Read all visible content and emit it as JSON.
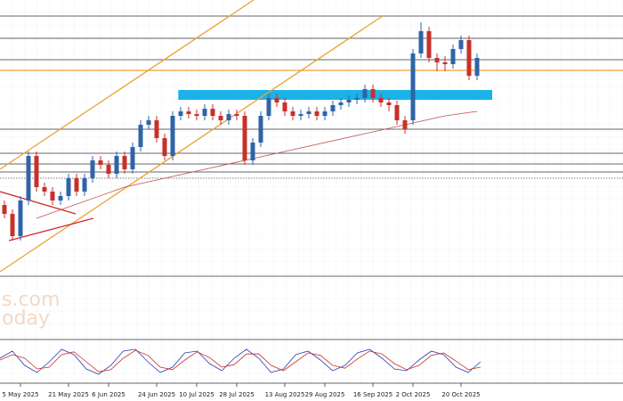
{
  "chart_data": {
    "type": "candlestick",
    "watermark": [
      "s.com",
      "oday"
    ],
    "open": [
      145,
      135,
      110,
      150,
      200,
      165,
      160,
      150,
      155,
      175,
      160,
      175,
      195,
      190,
      180,
      200,
      185,
      210,
      235,
      240,
      220,
      200,
      245,
      250,
      247,
      245,
      253,
      245,
      240,
      247,
      245,
      195,
      215,
      245,
      265,
      260,
      250,
      245,
      247,
      250,
      245,
      250,
      257,
      260,
      263,
      265,
      275,
      265,
      260,
      257,
      240,
      240,
      315,
      340,
      310,
      305,
      303,
      320,
      330,
      290
    ],
    "high": [
      150,
      140,
      155,
      205,
      205,
      170,
      165,
      160,
      180,
      180,
      180,
      200,
      200,
      195,
      205,
      205,
      215,
      240,
      245,
      245,
      225,
      250,
      255,
      255,
      252,
      258,
      258,
      250,
      252,
      252,
      250,
      220,
      250,
      270,
      270,
      265,
      255,
      252,
      255,
      255,
      255,
      262,
      265,
      268,
      270,
      280,
      280,
      270,
      265,
      262,
      245,
      320,
      350,
      345,
      315,
      312,
      325,
      335,
      335,
      315
    ],
    "low": [
      130,
      105,
      105,
      145,
      160,
      155,
      145,
      145,
      150,
      155,
      155,
      170,
      185,
      175,
      175,
      180,
      180,
      205,
      230,
      215,
      195,
      195,
      240,
      242,
      240,
      240,
      240,
      235,
      235,
      240,
      190,
      190,
      210,
      240,
      255,
      245,
      240,
      240,
      242,
      240,
      240,
      245,
      252,
      255,
      258,
      260,
      260,
      255,
      250,
      235,
      225,
      235,
      310,
      305,
      295,
      295,
      298,
      315,
      285,
      285
    ],
    "close": [
      135,
      110,
      150,
      200,
      165,
      160,
      150,
      155,
      175,
      160,
      175,
      195,
      190,
      180,
      200,
      185,
      210,
      235,
      240,
      220,
      200,
      245,
      250,
      247,
      245,
      253,
      245,
      240,
      247,
      245,
      195,
      215,
      245,
      265,
      260,
      250,
      245,
      247,
      250,
      245,
      250,
      257,
      260,
      263,
      265,
      275,
      265,
      260,
      257,
      240,
      230,
      315,
      340,
      310,
      305,
      303,
      320,
      330,
      290,
      310
    ],
    "up_color": "#2f64a8",
    "down_color": "#c8302a",
    "ylim": [
      0,
      375
    ],
    "xticks": [
      {
        "value": 2,
        "label": "5 May 2025"
      },
      {
        "value": 8,
        "label": "21 May 2025"
      },
      {
        "value": 13,
        "label": "6 Jun 2025"
      },
      {
        "value": 19,
        "label": "24 Jun 2025"
      },
      {
        "value": 24,
        "label": "10 Jul 2025"
      },
      {
        "value": 29,
        "label": "28 Jul 2025"
      },
      {
        "value": 35,
        "label": "13 Aug 2025"
      },
      {
        "value": 40,
        "label": "29 Aug 2025"
      },
      {
        "value": 46,
        "label": "16 Sep 2025"
      },
      {
        "value": 51,
        "label": "2 Oct 2025"
      },
      {
        "value": 57,
        "label": "20 Oct 2025"
      }
    ],
    "levels": [
      {
        "value": 357,
        "color": "#333333"
      },
      {
        "value": 332,
        "color": "#333333"
      },
      {
        "value": 308,
        "color": "#333333"
      },
      {
        "value": 296,
        "color": "#f0a030"
      },
      {
        "value": 230,
        "color": "#333333"
      },
      {
        "value": 203,
        "color": "#333333"
      },
      {
        "value": 191,
        "color": "#333333"
      },
      {
        "value": 182,
        "color": "#333333"
      },
      {
        "value": 175,
        "color": "#555555",
        "dotted": true
      },
      {
        "value": 65,
        "color": "#333333"
      }
    ],
    "trendlines": [
      {
        "x": [
          -0.56,
          31.1
        ],
        "y": [
          185,
          375
        ],
        "color": "#f0a030"
      },
      {
        "x": [
          -0.56,
          47.2
        ],
        "y": [
          70,
          357
        ],
        "color": "#f0a030"
      },
      {
        "x": [
          -0.56,
          8.9
        ],
        "y": [
          160,
          135
        ],
        "color": "#d42a2a"
      },
      {
        "x": [
          0.56,
          11.1
        ],
        "y": [
          105,
          130
        ],
        "color": "#d42a2a"
      },
      {
        "x": [
          4,
          15,
          25,
          35,
          45,
          50,
          55,
          59
        ],
        "y": [
          130,
          165,
          185,
          205,
          225,
          235,
          245,
          250
        ],
        "color": "#c0504d",
        "thin": true
      }
    ],
    "zone": {
      "x": [
        21.7,
        60.9
      ],
      "y": [
        263,
        274
      ],
      "color": "#1ab2e8"
    },
    "stochastic": {
      "ylim": [
        0,
        100
      ],
      "k": [
        60,
        80,
        40,
        20,
        50,
        85,
        70,
        30,
        15,
        40,
        80,
        85,
        50,
        20,
        35,
        75,
        80,
        45,
        25,
        60,
        85,
        60,
        20,
        30,
        70,
        80,
        55,
        25,
        40,
        75,
        85,
        60,
        30,
        25,
        55,
        80,
        70,
        35,
        20,
        50
      ],
      "d": [
        55,
        70,
        60,
        30,
        35,
        70,
        78,
        50,
        22,
        28,
        60,
        82,
        68,
        35,
        28,
        55,
        78,
        62,
        35,
        42,
        72,
        72,
        40,
        25,
        50,
        75,
        68,
        40,
        32,
        58,
        80,
        72,
        45,
        28,
        40,
        68,
        75,
        52,
        28,
        35
      ],
      "k_color": "#2a3fa8",
      "d_color": "#c8302a"
    }
  }
}
